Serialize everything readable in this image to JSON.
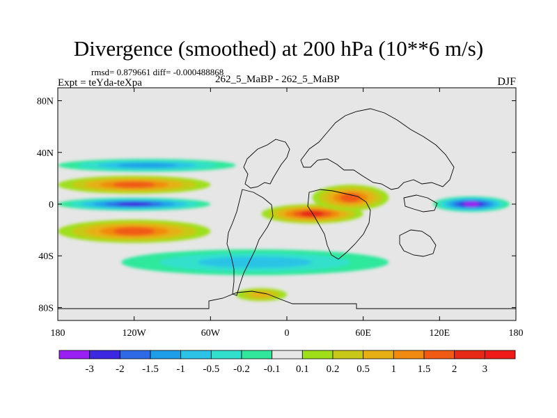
{
  "header": {
    "title": "Divergence (smoothed) at 200 hPa (10**6 m/s)",
    "stats": "rmsd= 0.879661 diff= -0.000488868",
    "experiment": "Expt = teYda-teXpa",
    "subtitle": "262_5_MaBP - 262_5_MaBP",
    "season": "DJF"
  },
  "chart_data": {
    "type": "heatmap",
    "title": "Divergence (smoothed) at 200 hPa (10**6 m/s)",
    "projection": "cylindrical equidistant",
    "xlabel": "",
    "ylabel": "",
    "xlim": [
      -180,
      180
    ],
    "ylim": [
      -90,
      90
    ],
    "xticks": [
      -180,
      -120,
      -60,
      0,
      60,
      120,
      180
    ],
    "xtick_labels": [
      "180",
      "120W",
      "60W",
      "0",
      "60E",
      "120E",
      "180"
    ],
    "yticks": [
      80,
      40,
      0,
      -40,
      -80
    ],
    "ytick_labels": [
      "80N",
      "40N",
      "0",
      "40S",
      "80S"
    ],
    "colorbar": {
      "levels": [
        "-3",
        "-2",
        "-1.5",
        "-1",
        "-0.5",
        "-0.2",
        "-0.1",
        "0.1",
        "0.2",
        "0.5",
        "1",
        "1.5",
        "2",
        "3"
      ],
      "colors": [
        "#9a1ff2",
        "#3c28e0",
        "#2f6ae6",
        "#1e9ee8",
        "#2cc3e6",
        "#30e0cc",
        "#2fe89c",
        "#e6e6e6",
        "#9fdf1a",
        "#c8c818",
        "#e6b014",
        "#f08a10",
        "#f05a12",
        "#e62a16",
        "#f01a18"
      ]
    },
    "features": [
      {
        "name": "equatorial convergence band over the Pacific",
        "lon": [
          -180,
          -60
        ],
        "lat": [
          -5,
          5
        ],
        "value": -2
      },
      {
        "name": "strong convergence west Pacific",
        "lon": [
          115,
          175
        ],
        "lat": [
          -6,
          6
        ],
        "value": -3
      },
      {
        "name": "divergence band north of equator (Pacific)",
        "lon": [
          -180,
          -60
        ],
        "lat": [
          8,
          22
        ],
        "value": 1.5
      },
      {
        "name": "divergence band south of equator (Pacific)",
        "lon": [
          -180,
          -60
        ],
        "lat": [
          -30,
          -12
        ],
        "value": 1.5
      },
      {
        "name": "divergence over Africa / Indian Ocean",
        "lon": [
          -20,
          60
        ],
        "lat": [
          -15,
          0
        ],
        "value": 2
      },
      {
        "name": "divergence over northern Africa",
        "lon": [
          20,
          80
        ],
        "lat": [
          -5,
          15
        ],
        "value": 1.5
      },
      {
        "name": "convergence mid-latitude North",
        "lon": [
          -180,
          -40
        ],
        "lat": [
          25,
          35
        ],
        "value": -1
      },
      {
        "name": "convergence southern mid-latitudes",
        "lon": [
          -130,
          80
        ],
        "lat": [
          -55,
          -35
        ],
        "value": -0.5
      },
      {
        "name": "divergence Southern Ocean",
        "lon": [
          -40,
          0
        ],
        "lat": [
          -75,
          -65
        ],
        "value": 0.5
      }
    ]
  }
}
